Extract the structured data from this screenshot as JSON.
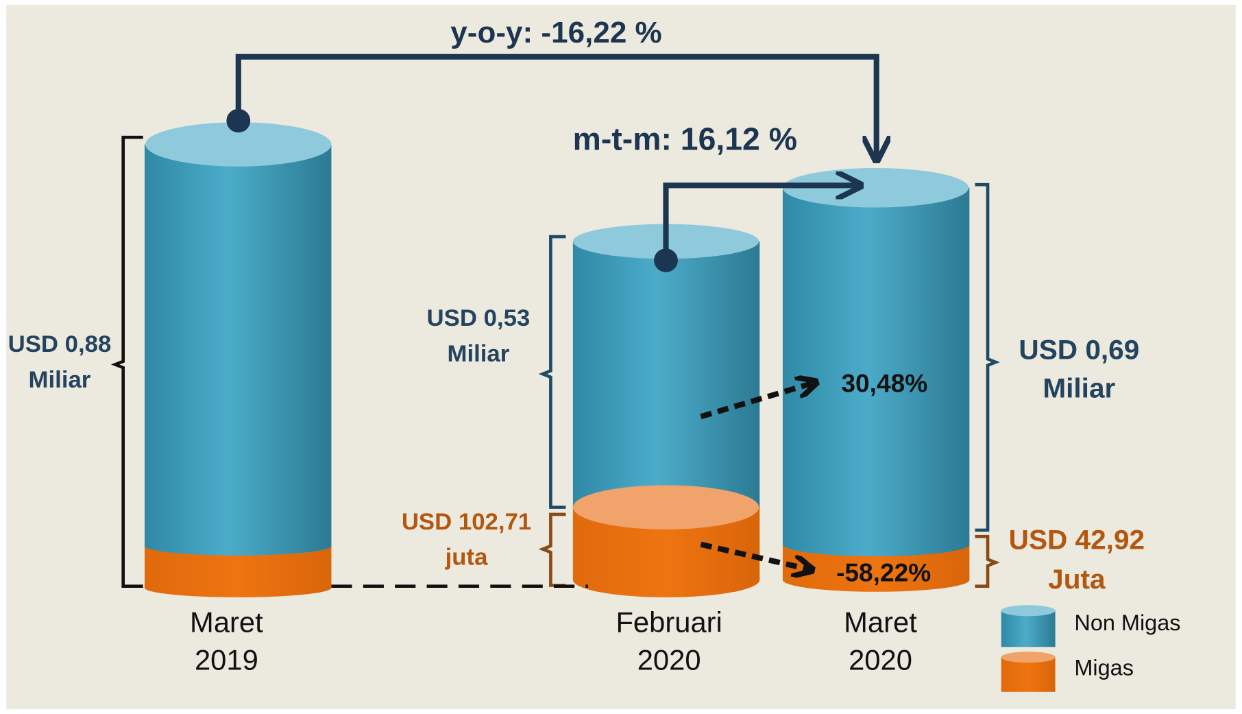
{
  "annotations": {
    "yoy": "y-o-y:  -16,22 %",
    "mtm": "m-t-m: 16,12 %",
    "nonmigas_growth": "30,48%",
    "migas_growth": "-58,22%"
  },
  "columns": [
    {
      "label": [
        "Maret",
        "2019"
      ],
      "nonmigas_label": [
        "USD 0,88",
        "Miliar"
      ]
    },
    {
      "label": [
        "Februari",
        "2020"
      ],
      "nonmigas_label": [
        "USD 0,53",
        "Miliar"
      ],
      "migas_label": [
        "USD 102,71",
        "juta"
      ]
    },
    {
      "label": [
        "Maret",
        "2020"
      ],
      "nonmigas_label": [
        "USD 0,69",
        "Miliar"
      ],
      "migas_label": [
        "USD 42,92",
        "Juta"
      ]
    }
  ],
  "legend": [
    "Non Migas",
    "Migas"
  ]
}
